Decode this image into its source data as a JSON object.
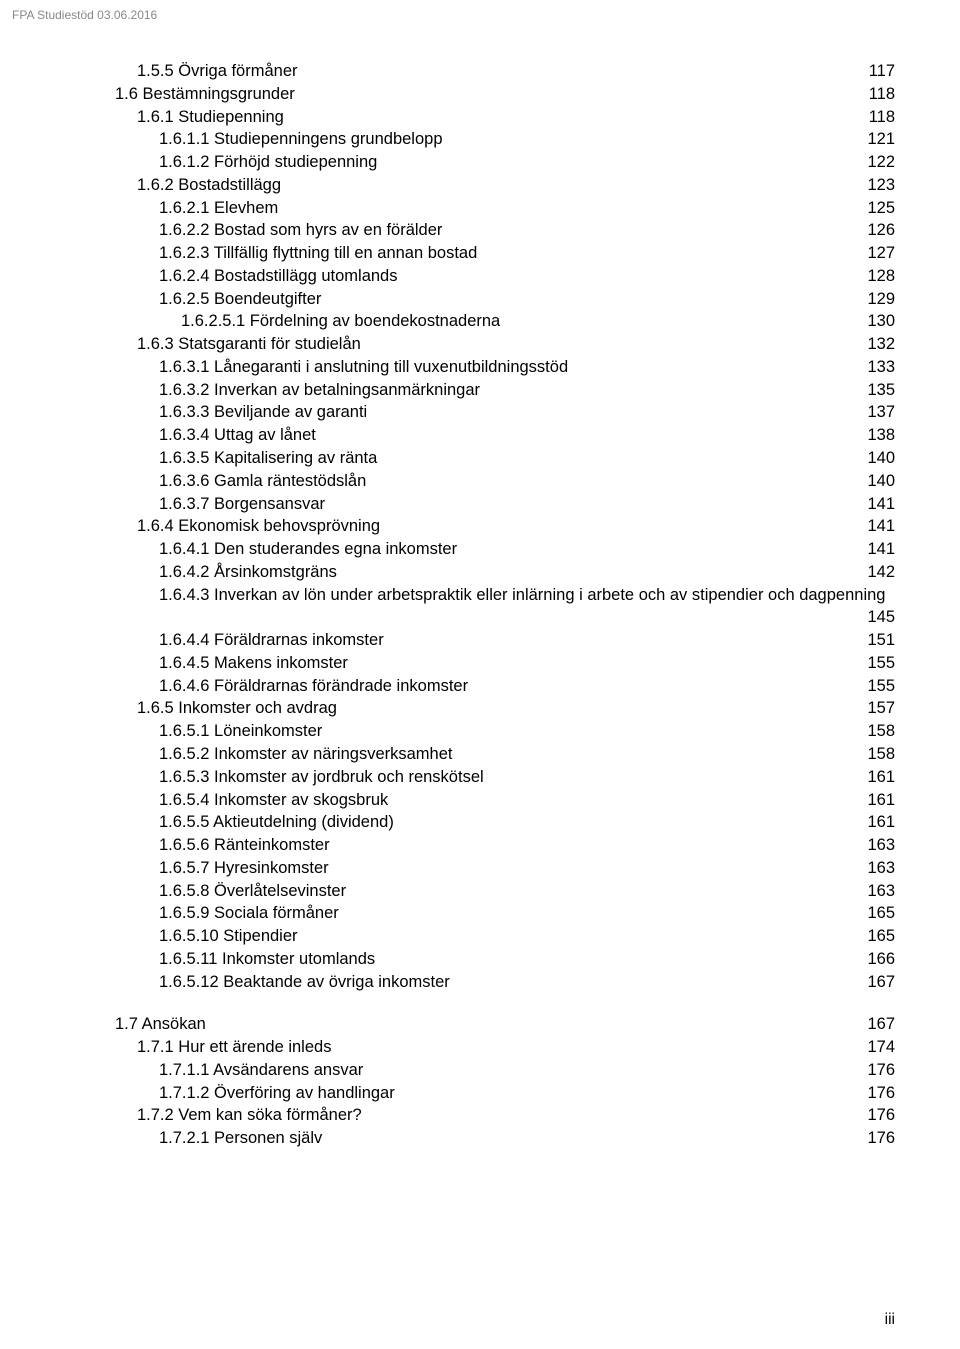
{
  "header": "FPA Studiestöd 03.06.2016",
  "footer": "iii",
  "toc": [
    {
      "indent": 2,
      "label": "1.5.5 Övriga förmåner",
      "page": "117"
    },
    {
      "indent": 1,
      "label": "1.6 Bestämningsgrunder",
      "page": "118"
    },
    {
      "indent": 2,
      "label": "1.6.1 Studiepenning",
      "page": "118"
    },
    {
      "indent": 3,
      "label": "1.6.1.1 Studiepenningens grundbelopp",
      "page": "121"
    },
    {
      "indent": 3,
      "label": "1.6.1.2 Förhöjd studiepenning",
      "page": "122"
    },
    {
      "indent": 2,
      "label": "1.6.2 Bostadstillägg",
      "page": "123"
    },
    {
      "indent": 3,
      "label": "1.6.2.1 Elevhem",
      "page": "125"
    },
    {
      "indent": 3,
      "label": "1.6.2.2 Bostad som hyrs av en förälder",
      "page": "126"
    },
    {
      "indent": 3,
      "label": "1.6.2.3 Tillfällig flyttning till en annan bostad",
      "page": "127"
    },
    {
      "indent": 3,
      "label": "1.6.2.4 Bostadstillägg utomlands",
      "page": "128"
    },
    {
      "indent": 3,
      "label": "1.6.2.5 Boendeutgifter",
      "page": "129"
    },
    {
      "indent": 4,
      "label": "1.6.2.5.1 Fördelning av boendekostnaderna",
      "page": "130"
    },
    {
      "indent": 2,
      "label": "1.6.3 Statsgaranti för studielån",
      "page": "132"
    },
    {
      "indent": 3,
      "label": "1.6.3.1 Lånegaranti i anslutning till vuxenutbildningsstöd",
      "page": "133"
    },
    {
      "indent": 3,
      "label": "1.6.3.2 Inverkan av betalningsanmärkningar",
      "page": "135"
    },
    {
      "indent": 3,
      "label": "1.6.3.3 Beviljande av garanti",
      "page": "137"
    },
    {
      "indent": 3,
      "label": "1.6.3.4 Uttag av lånet",
      "page": "138"
    },
    {
      "indent": 3,
      "label": "1.6.3.5 Kapitalisering av ränta",
      "page": "140"
    },
    {
      "indent": 3,
      "label": "1.6.3.6 Gamla räntestödslån",
      "page": "140"
    },
    {
      "indent": 3,
      "label": "1.6.3.7 Borgensansvar",
      "page": "141"
    },
    {
      "indent": 2,
      "label": "1.6.4 Ekonomisk behovsprövning",
      "page": "141"
    },
    {
      "indent": 3,
      "label": "1.6.4.1 Den studerandes egna inkomster",
      "page": "141"
    },
    {
      "indent": 3,
      "label": "1.6.4.2 Årsinkomstgräns",
      "page": "142"
    },
    {
      "indent": 3,
      "label": "1.6.4.3 Inverkan av lön under arbetspraktik eller inlärning i arbete och av stipendier och dagpenning",
      "page": "145",
      "wrap": true
    },
    {
      "indent": 3,
      "label": "1.6.4.4 Föräldrarnas inkomster",
      "page": "151"
    },
    {
      "indent": 3,
      "label": "1.6.4.5 Makens inkomster",
      "page": "155"
    },
    {
      "indent": 3,
      "label": "1.6.4.6 Föräldrarnas förändrade inkomster",
      "page": "155"
    },
    {
      "indent": 2,
      "label": "1.6.5 Inkomster och avdrag",
      "page": "157"
    },
    {
      "indent": 3,
      "label": "1.6.5.1 Löneinkomster",
      "page": "158"
    },
    {
      "indent": 3,
      "label": "1.6.5.2 Inkomster av näringsverksamhet",
      "page": "158"
    },
    {
      "indent": 3,
      "label": "1.6.5.3 Inkomster av jordbruk och renskötsel",
      "page": "161"
    },
    {
      "indent": 3,
      "label": "1.6.5.4 Inkomster av skogsbruk",
      "page": "161"
    },
    {
      "indent": 3,
      "label": "1.6.5.5 Aktieutdelning (dividend)",
      "page": "161"
    },
    {
      "indent": 3,
      "label": "1.6.5.6 Ränteinkomster",
      "page": "163"
    },
    {
      "indent": 3,
      "label": "1.6.5.7 Hyresinkomster",
      "page": "163"
    },
    {
      "indent": 3,
      "label": "1.6.5.8 Överlåtelsevinster",
      "page": "163"
    },
    {
      "indent": 3,
      "label": "1.6.5.9 Sociala förmåner",
      "page": "165"
    },
    {
      "indent": 3,
      "label": "1.6.5.10 Stipendier",
      "page": "165"
    },
    {
      "indent": 3,
      "label": "1.6.5.11 Inkomster utomlands",
      "page": "166"
    },
    {
      "indent": 3,
      "label": "1.6.5.12 Beaktande av övriga inkomster",
      "page": "167"
    },
    {
      "indent": 1,
      "label": "1.7 Ansökan",
      "page": "167",
      "gap": true
    },
    {
      "indent": 2,
      "label": "1.7.1 Hur ett ärende inleds",
      "page": "174"
    },
    {
      "indent": 3,
      "label": "1.7.1.1 Avsändarens ansvar",
      "page": "176"
    },
    {
      "indent": 3,
      "label": "1.7.1.2 Överföring av handlingar",
      "page": "176"
    },
    {
      "indent": 2,
      "label": "1.7.2 Vem kan söka förmåner?",
      "page": "176"
    },
    {
      "indent": 3,
      "label": "1.7.2.1 Personen själv",
      "page": "176"
    }
  ]
}
